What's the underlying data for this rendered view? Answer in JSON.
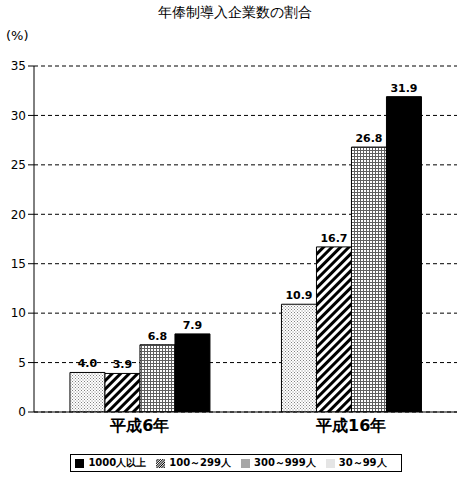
{
  "chart_data": {
    "type": "bar",
    "title": "年俸制導入企業数の割合",
    "ylabel": "(%)",
    "categories": [
      "平成6年",
      "平成16年"
    ],
    "series": [
      {
        "name": "30～99人",
        "color": "#808080",
        "values": [
          4.0,
          10.9
        ],
        "value_labels": [
          "4.0",
          "10.9"
        ]
      },
      {
        "name": "100～299人",
        "color": "#000000",
        "values": [
          3.9,
          16.7
        ],
        "value_labels": [
          "3.9",
          "16.7"
        ]
      },
      {
        "name": "300～999人",
        "color": "#606060",
        "values": [
          6.8,
          26.8
        ],
        "value_labels": [
          "6.8",
          "26.8"
        ]
      },
      {
        "name": "1000人以上",
        "color": "#000000",
        "values": [
          7.9,
          31.9
        ],
        "value_labels": [
          "7.9",
          "31.9"
        ]
      }
    ],
    "ylim": [
      0,
      35
    ],
    "yticks": [
      0,
      5,
      10,
      15,
      20,
      25,
      30,
      35
    ],
    "grid": true,
    "data_labels": true,
    "legend": "bottom"
  }
}
